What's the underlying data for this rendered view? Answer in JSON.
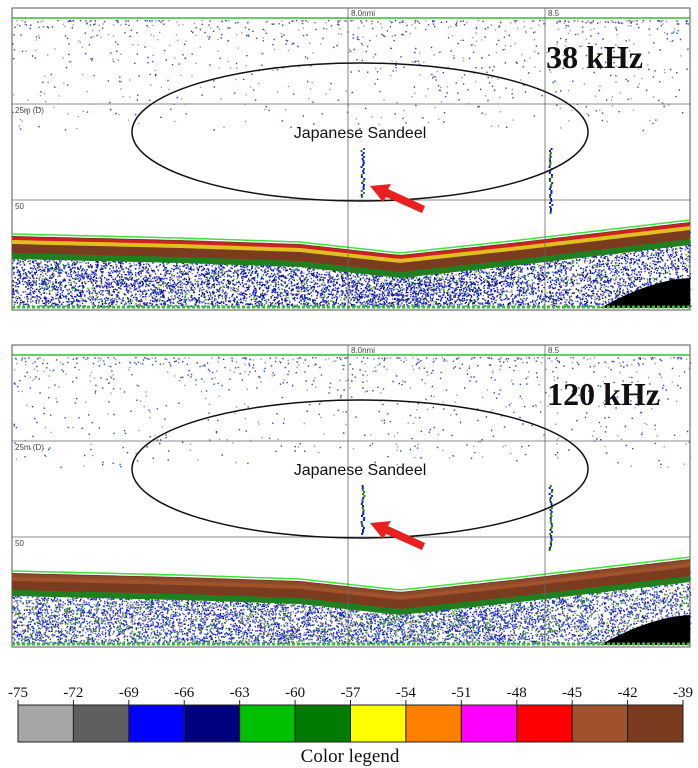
{
  "panels": [
    {
      "distance_left": "8.0nmi",
      "distance_right": "8.5",
      "depth_upper": "25m (D)",
      "depth_lower": "50",
      "frequency": "38 kHz",
      "annotation": "Japanese Sandeel"
    },
    {
      "distance_left": "8.0nmi",
      "distance_right": "8.5",
      "depth_upper": "25m (D)",
      "depth_lower": "50",
      "frequency": "120 kHz",
      "annotation": "Japanese Sandeel"
    }
  ],
  "legend": {
    "title": "Color legend",
    "ticks": [
      -75,
      -72,
      -69,
      -66,
      -63,
      -60,
      -57,
      -54,
      -51,
      -48,
      -45,
      -42,
      -39
    ],
    "colors": [
      "#a6a6a6",
      "#5f5f5f",
      "#0000ff",
      "#00007f",
      "#00c000",
      "#007a00",
      "#ffff00",
      "#ff8000",
      "#ff00ff",
      "#ff0000",
      "#a0522d",
      "#7a3b1e"
    ]
  }
}
